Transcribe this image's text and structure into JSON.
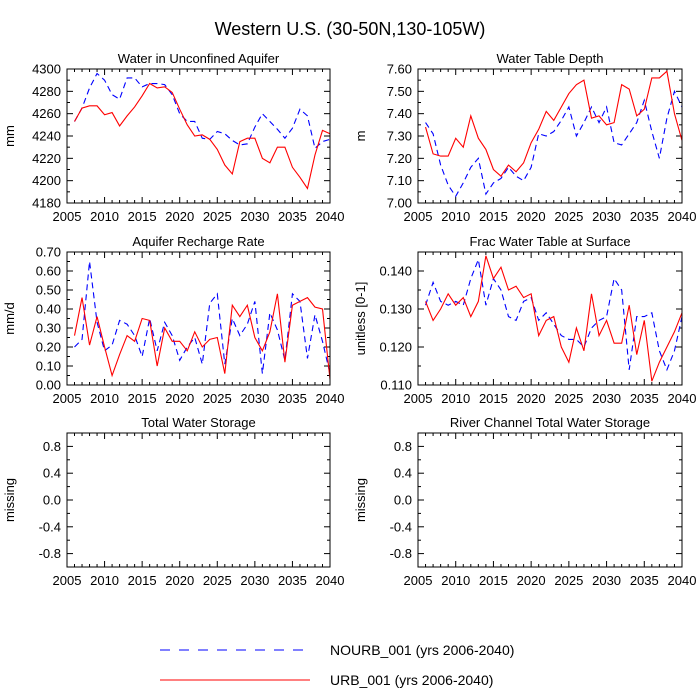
{
  "title": "Western U.S. (30-50N,130-105W)",
  "legend": [
    {
      "label": "NOURB_001 (yrs 2006-2040)",
      "color": "#0000ff",
      "dash": true
    },
    {
      "label": "URB_001 (yrs 2006-2040)",
      "color": "#ff0000",
      "dash": false
    }
  ],
  "chart_data": [
    {
      "type": "line",
      "title": "Water in Unconfined Aquifer",
      "ylabel": "mm",
      "xlim": [
        2005,
        2040
      ],
      "ylim": [
        4180,
        4300
      ],
      "xticks": [
        2005,
        2010,
        2015,
        2020,
        2025,
        2030,
        2035,
        2040
      ],
      "yticks": [
        4180,
        4200,
        4220,
        4240,
        4260,
        4280,
        4300
      ],
      "ytick_labels": [
        "4180",
        "4200",
        "4220",
        "4240",
        "4260",
        "4280",
        "4300"
      ],
      "x": [
        2006,
        2007,
        2008,
        2009,
        2010,
        2011,
        2012,
        2013,
        2014,
        2015,
        2016,
        2017,
        2018,
        2019,
        2020,
        2021,
        2022,
        2023,
        2024,
        2025,
        2026,
        2027,
        2028,
        2029,
        2030,
        2031,
        2032,
        2033,
        2034,
        2035,
        2036,
        2037,
        2038,
        2039,
        2040
      ],
      "series": [
        {
          "name": "NOURB_001",
          "values": [
            4253,
            4265,
            4283,
            4296,
            4290,
            4277,
            4273,
            4292,
            4292,
            4284,
            4287,
            4287,
            4286,
            4277,
            4260,
            4253,
            4253,
            4238,
            4237,
            4244,
            4242,
            4236,
            4232,
            4233,
            4248,
            4260,
            4253,
            4246,
            4238,
            4247,
            4264,
            4258,
            4229,
            4235,
            4237
          ]
        },
        {
          "name": "URB_001",
          "values": [
            4253,
            4265,
            4267,
            4267,
            4259,
            4261,
            4249,
            4258,
            4266,
            4276,
            4287,
            4283,
            4284,
            4279,
            4264,
            4250,
            4240,
            4241,
            4237,
            4228,
            4214,
            4206,
            4235,
            4238,
            4238,
            4220,
            4216,
            4230,
            4230,
            4212,
            4203,
            4193,
            4223,
            4245,
            4242
          ]
        }
      ]
    },
    {
      "type": "line",
      "title": "Water Table Depth",
      "ylabel": "m",
      "xlim": [
        2005,
        2040
      ],
      "ylim": [
        7.0,
        7.6
      ],
      "xticks": [
        2005,
        2010,
        2015,
        2020,
        2025,
        2030,
        2035,
        2040
      ],
      "yticks": [
        7.0,
        7.1,
        7.2,
        7.3,
        7.4,
        7.5,
        7.6
      ],
      "ytick_labels": [
        "7.00",
        "7.10",
        "7.20",
        "7.30",
        "7.40",
        "7.50",
        "7.60"
      ],
      "x": [
        2006,
        2007,
        2008,
        2009,
        2010,
        2011,
        2012,
        2013,
        2014,
        2015,
        2016,
        2017,
        2018,
        2019,
        2020,
        2021,
        2022,
        2023,
        2024,
        2025,
        2026,
        2027,
        2028,
        2029,
        2030,
        2031,
        2032,
        2033,
        2034,
        2035,
        2036,
        2037,
        2038,
        2039,
        2040
      ],
      "series": [
        {
          "name": "NOURB_001",
          "values": [
            7.36,
            7.31,
            7.17,
            7.08,
            7.03,
            7.09,
            7.16,
            7.2,
            7.04,
            7.09,
            7.11,
            7.16,
            7.12,
            7.1,
            7.16,
            7.31,
            7.3,
            7.32,
            7.37,
            7.43,
            7.3,
            7.36,
            7.43,
            7.36,
            7.43,
            7.27,
            7.26,
            7.31,
            7.36,
            7.46,
            7.32,
            7.2,
            7.38,
            7.5,
            7.43
          ]
        },
        {
          "name": "URB_001",
          "values": [
            7.34,
            7.22,
            7.21,
            7.21,
            7.29,
            7.25,
            7.39,
            7.29,
            7.24,
            7.15,
            7.12,
            7.17,
            7.14,
            7.18,
            7.27,
            7.33,
            7.41,
            7.37,
            7.43,
            7.49,
            7.53,
            7.55,
            7.38,
            7.39,
            7.35,
            7.36,
            7.53,
            7.51,
            7.39,
            7.42,
            7.56,
            7.56,
            7.59,
            7.4,
            7.28
          ]
        }
      ]
    },
    {
      "type": "line",
      "title": "Aquifer Recharge Rate",
      "ylabel": "mm/d",
      "xlim": [
        2005,
        2040
      ],
      "ylim": [
        0.0,
        0.7
      ],
      "xticks": [
        2005,
        2010,
        2015,
        2020,
        2025,
        2030,
        2035,
        2040
      ],
      "yticks": [
        0.0,
        0.1,
        0.2,
        0.3,
        0.4,
        0.5,
        0.6,
        0.7
      ],
      "ytick_labels": [
        "0.00",
        "0.10",
        "0.20",
        "0.30",
        "0.40",
        "0.50",
        "0.60",
        "0.70"
      ],
      "x": [
        2006,
        2007,
        2008,
        2009,
        2010,
        2011,
        2012,
        2013,
        2014,
        2015,
        2016,
        2017,
        2018,
        2019,
        2020,
        2021,
        2022,
        2023,
        2024,
        2025,
        2026,
        2027,
        2028,
        2029,
        2030,
        2031,
        2032,
        2033,
        2034,
        2035,
        2036,
        2037,
        2038,
        2039,
        2040
      ],
      "series": [
        {
          "name": "NOURB_001",
          "values": [
            0.2,
            0.24,
            0.65,
            0.33,
            0.18,
            0.21,
            0.34,
            0.32,
            0.26,
            0.15,
            0.35,
            0.18,
            0.33,
            0.26,
            0.13,
            0.2,
            0.25,
            0.11,
            0.43,
            0.48,
            0.11,
            0.35,
            0.26,
            0.32,
            0.44,
            0.06,
            0.38,
            0.29,
            0.13,
            0.48,
            0.44,
            0.14,
            0.37,
            0.23,
            0.06
          ]
        },
        {
          "name": "URB_001",
          "values": [
            0.26,
            0.46,
            0.21,
            0.36,
            0.2,
            0.05,
            0.16,
            0.26,
            0.23,
            0.35,
            0.34,
            0.1,
            0.3,
            0.23,
            0.23,
            0.18,
            0.28,
            0.2,
            0.24,
            0.25,
            0.06,
            0.42,
            0.36,
            0.42,
            0.25,
            0.18,
            0.28,
            0.48,
            0.12,
            0.42,
            0.44,
            0.46,
            0.41,
            0.4,
            0.03
          ]
        }
      ]
    },
    {
      "type": "line",
      "title": "Frac Water Table at Surface",
      "ylabel": "unitless [0-1]",
      "xlim": [
        2005,
        2040
      ],
      "ylim": [
        0.11,
        0.145
      ],
      "xticks": [
        2005,
        2010,
        2015,
        2020,
        2025,
        2030,
        2035,
        2040
      ],
      "yticks": [
        0.11,
        0.12,
        0.13,
        0.14
      ],
      "ytick_labels": [
        "0.110",
        "0.120",
        "0.130",
        "0.140"
      ],
      "x": [
        2006,
        2007,
        2008,
        2009,
        2010,
        2011,
        2012,
        2013,
        2014,
        2015,
        2016,
        2017,
        2018,
        2019,
        2020,
        2021,
        2022,
        2023,
        2024,
        2025,
        2026,
        2027,
        2028,
        2029,
        2030,
        2031,
        2032,
        2033,
        2034,
        2035,
        2036,
        2037,
        2038,
        2039,
        2040
      ],
      "series": [
        {
          "name": "NOURB_001",
          "values": [
            0.131,
            0.137,
            0.132,
            0.131,
            0.132,
            0.131,
            0.138,
            0.143,
            0.131,
            0.138,
            0.135,
            0.128,
            0.127,
            0.132,
            0.133,
            0.127,
            0.129,
            0.126,
            0.123,
            0.122,
            0.122,
            0.12,
            0.125,
            0.127,
            0.128,
            0.138,
            0.135,
            0.114,
            0.128,
            0.128,
            0.129,
            0.119,
            0.114,
            0.119,
            0.128
          ]
        },
        {
          "name": "URB_001",
          "values": [
            0.132,
            0.127,
            0.13,
            0.134,
            0.131,
            0.133,
            0.128,
            0.132,
            0.144,
            0.138,
            0.141,
            0.135,
            0.136,
            0.133,
            0.134,
            0.123,
            0.127,
            0.128,
            0.12,
            0.116,
            0.125,
            0.119,
            0.134,
            0.123,
            0.127,
            0.121,
            0.121,
            0.131,
            0.118,
            0.127,
            0.111,
            0.116,
            0.12,
            0.124,
            0.129
          ]
        }
      ]
    },
    {
      "type": "line",
      "title": "Total Water Storage",
      "ylabel": "missing",
      "xlim": [
        2005,
        2040
      ],
      "ylim": [
        -1.0,
        1.0
      ],
      "xticks": [
        2005,
        2010,
        2015,
        2020,
        2025,
        2030,
        2035,
        2040
      ],
      "yticks": [
        -0.8,
        -0.4,
        0.0,
        0.4,
        0.8
      ],
      "ytick_labels": [
        "-0.8",
        "-0.4",
        "0.0",
        "0.4",
        "0.8"
      ],
      "x": [],
      "series": []
    },
    {
      "type": "line",
      "title": "River Channel Total Water Storage",
      "ylabel": "missing",
      "xlim": [
        2005,
        2040
      ],
      "ylim": [
        -1.0,
        1.0
      ],
      "xticks": [
        2005,
        2010,
        2015,
        2020,
        2025,
        2030,
        2035,
        2040
      ],
      "yticks": [
        -0.8,
        -0.4,
        0.0,
        0.4,
        0.8
      ],
      "ytick_labels": [
        "-0.8",
        "-0.4",
        "0.0",
        "0.4",
        "0.8"
      ],
      "x": [],
      "series": []
    }
  ]
}
